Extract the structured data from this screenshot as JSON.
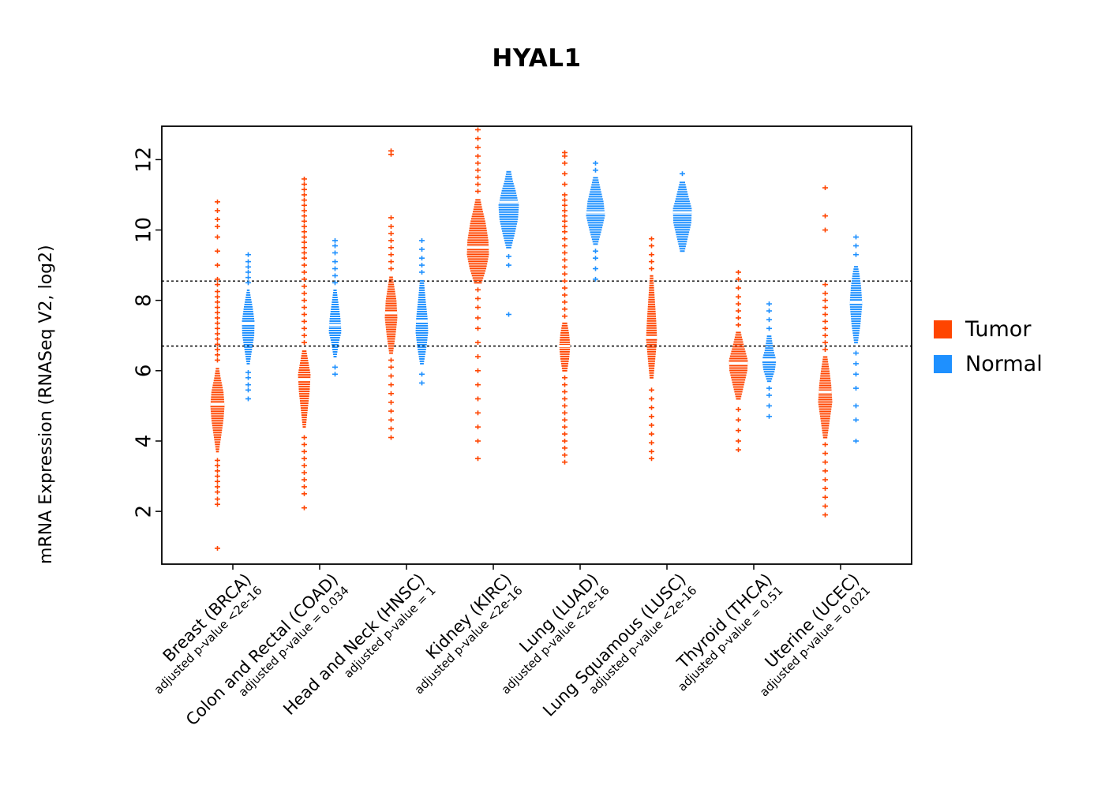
{
  "title": "HYAL1",
  "y_axis": {
    "label": "mRNA Expression (RNASeq V2, log2)",
    "ticks": [
      2,
      4,
      6,
      8,
      10,
      12
    ],
    "range": [
      0.5,
      12.95
    ]
  },
  "legend": [
    {
      "label": "Tumor",
      "color": "#FF4500"
    },
    {
      "label": "Normal",
      "color": "#1E90FF"
    }
  ],
  "chart_data": {
    "type": "violin-strip",
    "title": "HYAL1",
    "ylabel": "mRNA Expression (RNASeq V2, log2)",
    "ylim": [
      0.5,
      12.95
    ],
    "yticks": [
      2,
      4,
      6,
      8,
      10,
      12
    ],
    "grid": false,
    "legend_position": "right",
    "reference_lines": [
      8.55,
      6.7
    ],
    "series_colors": {
      "Tumor": "#FF4500",
      "Normal": "#1E90FF"
    },
    "groups": [
      {
        "label": "Breast (BRCA)",
        "pvalue": "adjusted p-value <2e-16",
        "tumor": {
          "median": 5.05,
          "half_width": 9,
          "body": [
            [
              3.7,
              0.2
            ],
            [
              4.1,
              0.5
            ],
            [
              4.6,
              0.85
            ],
            [
              5.0,
              1
            ],
            [
              5.4,
              0.85
            ],
            [
              5.8,
              0.45
            ],
            [
              6.1,
              0.2
            ]
          ],
          "outliers": [
            0.95,
            2.2,
            2.35,
            2.55,
            2.7,
            2.85,
            3.0,
            3.15,
            3.3,
            3.45,
            6.3,
            6.45,
            6.6,
            6.75,
            6.9,
            7.05,
            7.2,
            7.35,
            7.5,
            7.65,
            7.8,
            7.95,
            8.1,
            8.25,
            8.45,
            8.6,
            9.0,
            9.4,
            9.8,
            10.1,
            10.3,
            10.55,
            10.8
          ]
        },
        "normal": {
          "median": 7.35,
          "half_width": 8,
          "body": [
            [
              6.2,
              0.25
            ],
            [
              6.6,
              0.6
            ],
            [
              7.0,
              0.95
            ],
            [
              7.4,
              1
            ],
            [
              7.8,
              0.7
            ],
            [
              8.1,
              0.4
            ],
            [
              8.3,
              0.2
            ]
          ],
          "outliers": [
            5.2,
            5.45,
            5.6,
            5.8,
            5.95,
            8.5,
            8.65,
            8.8,
            8.95,
            9.1,
            9.3
          ]
        }
      },
      {
        "label": "Colon and Rectal (COAD)",
        "pvalue": "adjusted p-value = 0.034",
        "tumor": {
          "median": 5.75,
          "half_width": 8,
          "body": [
            [
              4.4,
              0.25
            ],
            [
              4.9,
              0.55
            ],
            [
              5.4,
              0.85
            ],
            [
              5.9,
              1
            ],
            [
              6.2,
              0.7
            ],
            [
              6.6,
              0.3
            ]
          ],
          "outliers": [
            2.1,
            2.5,
            2.7,
            2.9,
            3.1,
            3.3,
            3.5,
            3.7,
            3.9,
            4.1,
            6.8,
            7.0,
            7.2,
            7.4,
            7.6,
            7.8,
            8.0,
            8.2,
            8.4,
            8.6,
            8.8,
            9.0,
            9.2,
            9.35,
            9.5,
            9.65,
            9.8,
            9.95,
            10.1,
            10.25,
            10.4,
            10.55,
            10.7,
            10.85,
            11.0,
            11.15,
            11.3,
            11.45
          ]
        },
        "normal": {
          "median": 7.3,
          "half_width": 8,
          "body": [
            [
              6.4,
              0.25
            ],
            [
              6.8,
              0.6
            ],
            [
              7.1,
              1
            ],
            [
              7.5,
              0.85
            ],
            [
              7.9,
              0.55
            ],
            [
              8.3,
              0.25
            ]
          ],
          "outliers": [
            5.9,
            6.1,
            8.5,
            8.7,
            8.9,
            9.1,
            9.35,
            9.55,
            9.7
          ]
        }
      },
      {
        "label": "Head and Neck (HNSC)",
        "pvalue": "adjusted p-value = 1",
        "tumor": {
          "median": 7.65,
          "half_width": 8,
          "body": [
            [
              6.5,
              0.3
            ],
            [
              7.0,
              0.7
            ],
            [
              7.5,
              1
            ],
            [
              8.0,
              0.85
            ],
            [
              8.4,
              0.5
            ],
            [
              8.7,
              0.25
            ]
          ],
          "outliers": [
            4.1,
            4.35,
            4.6,
            4.85,
            5.1,
            5.35,
            5.6,
            5.85,
            6.1,
            6.3,
            8.9,
            9.1,
            9.3,
            9.5,
            9.7,
            9.9,
            10.1,
            10.35,
            12.15,
            12.25
          ]
        },
        "normal": {
          "median": 7.4,
          "half_width": 8,
          "body": [
            [
              6.2,
              0.3
            ],
            [
              6.7,
              0.75
            ],
            [
              7.1,
              1
            ],
            [
              7.5,
              0.9
            ],
            [
              8.0,
              0.6
            ],
            [
              8.6,
              0.3
            ]
          ],
          "outliers": [
            5.65,
            5.9,
            8.8,
            9.0,
            9.2,
            9.45,
            9.7
          ]
        }
      },
      {
        "label": "Kidney (KIRC)",
        "pvalue": "adjusted p-value <2e-16",
        "tumor": {
          "median": 9.5,
          "half_width": 14,
          "body": [
            [
              8.5,
              0.35
            ],
            [
              8.9,
              0.75
            ],
            [
              9.3,
              1
            ],
            [
              9.7,
              0.95
            ],
            [
              10.2,
              0.7
            ],
            [
              10.6,
              0.4
            ],
            [
              10.9,
              0.2
            ]
          ],
          "outliers": [
            3.5,
            4.0,
            4.4,
            4.8,
            5.2,
            5.6,
            6.0,
            6.4,
            6.8,
            7.2,
            7.5,
            7.8,
            8.05,
            8.3,
            11.1,
            11.3,
            11.5,
            11.7,
            11.9,
            12.1,
            12.35,
            12.6,
            12.85
          ]
        },
        "normal": {
          "median": 10.8,
          "half_width": 13,
          "body": [
            [
              9.5,
              0.25
            ],
            [
              9.9,
              0.6
            ],
            [
              10.3,
              0.9
            ],
            [
              10.7,
              1
            ],
            [
              11.1,
              0.7
            ],
            [
              11.4,
              0.4
            ],
            [
              11.7,
              0.2
            ]
          ],
          "outliers": [
            7.6,
            9.0,
            9.25
          ]
        }
      },
      {
        "label": "Lung (LUAD)",
        "pvalue": "adjusted p-value <2e-16",
        "tumor": {
          "median": 6.7,
          "half_width": 7,
          "body": [
            [
              6.0,
              0.45
            ],
            [
              6.35,
              0.8
            ],
            [
              6.7,
              1
            ],
            [
              7.05,
              0.8
            ],
            [
              7.35,
              0.45
            ]
          ],
          "outliers": [
            3.4,
            3.6,
            3.8,
            4.0,
            4.2,
            4.4,
            4.6,
            4.8,
            5.0,
            5.2,
            5.4,
            5.6,
            5.8,
            7.55,
            7.75,
            7.95,
            8.15,
            8.35,
            8.55,
            8.75,
            8.95,
            9.15,
            9.35,
            9.55,
            9.75,
            9.95,
            10.1,
            10.25,
            10.4,
            10.55,
            10.7,
            10.85,
            11.0,
            11.3,
            11.6,
            11.9,
            12.1,
            12.2
          ]
        },
        "normal": {
          "median": 10.5,
          "half_width": 12,
          "body": [
            [
              9.6,
              0.25
            ],
            [
              10.0,
              0.65
            ],
            [
              10.4,
              1
            ],
            [
              10.8,
              0.85
            ],
            [
              11.2,
              0.5
            ],
            [
              11.5,
              0.25
            ]
          ],
          "outliers": [
            8.6,
            8.9,
            9.2,
            9.4,
            11.7,
            11.9
          ]
        }
      },
      {
        "label": "Lung Squamous (LUSC)",
        "pvalue": "adjusted p-value <2e-16",
        "tumor": {
          "median": 6.95,
          "half_width": 7,
          "body": [
            [
              5.8,
              0.35
            ],
            [
              6.3,
              0.65
            ],
            [
              6.9,
              1
            ],
            [
              7.4,
              0.85
            ],
            [
              8.0,
              0.6
            ],
            [
              8.7,
              0.3
            ]
          ],
          "outliers": [
            3.5,
            3.7,
            3.95,
            4.2,
            4.45,
            4.7,
            4.95,
            5.2,
            5.45,
            8.9,
            9.1,
            9.3,
            9.55,
            9.75
          ]
        },
        "normal": {
          "median": 10.5,
          "half_width": 12,
          "body": [
            [
              9.4,
              0.25
            ],
            [
              9.8,
              0.6
            ],
            [
              10.2,
              0.95
            ],
            [
              10.6,
              1
            ],
            [
              11.0,
              0.6
            ],
            [
              11.4,
              0.25
            ]
          ],
          "outliers": [
            11.6
          ]
        }
      },
      {
        "label": "Thyroid (THCA)",
        "pvalue": "adjusted p-value = 0.51",
        "tumor": {
          "median": 6.2,
          "half_width": 12,
          "body": [
            [
              5.2,
              0.25
            ],
            [
              5.6,
              0.6
            ],
            [
              6.0,
              0.95
            ],
            [
              6.3,
              1
            ],
            [
              6.7,
              0.6
            ],
            [
              7.1,
              0.25
            ]
          ],
          "outliers": [
            3.75,
            4.0,
            4.3,
            4.6,
            4.9,
            7.3,
            7.5,
            7.7,
            7.9,
            8.1,
            8.35,
            8.6,
            8.8
          ]
        },
        "normal": {
          "median": 6.3,
          "half_width": 9,
          "body": [
            [
              5.7,
              0.3
            ],
            [
              6.0,
              0.8
            ],
            [
              6.3,
              1
            ],
            [
              6.6,
              0.6
            ],
            [
              7.0,
              0.3
            ]
          ],
          "outliers": [
            4.7,
            5.0,
            5.3,
            5.5,
            7.2,
            7.45,
            7.7,
            7.9
          ]
        }
      },
      {
        "label": "Uterine (UCEC)",
        "pvalue": "adjusted p-value = 0.021",
        "tumor": {
          "median": 5.4,
          "half_width": 9,
          "body": [
            [
              4.1,
              0.3
            ],
            [
              4.6,
              0.65
            ],
            [
              5.1,
              1
            ],
            [
              5.6,
              0.85
            ],
            [
              6.0,
              0.6
            ],
            [
              6.4,
              0.3
            ]
          ],
          "outliers": [
            1.9,
            2.15,
            2.4,
            2.65,
            2.9,
            3.15,
            3.4,
            3.65,
            3.9,
            6.6,
            6.8,
            7.0,
            7.2,
            7.4,
            7.6,
            7.8,
            8.0,
            8.2,
            8.45,
            10.0,
            10.4,
            11.2
          ]
        },
        "normal": {
          "median": 7.95,
          "half_width": 8,
          "body": [
            [
              6.8,
              0.3
            ],
            [
              7.3,
              0.7
            ],
            [
              7.9,
              1
            ],
            [
              8.4,
              0.8
            ],
            [
              8.8,
              0.5
            ],
            [
              9.0,
              0.25
            ]
          ],
          "outliers": [
            4.0,
            4.6,
            5.0,
            5.5,
            5.9,
            6.2,
            6.5,
            9.3,
            9.55,
            9.8
          ]
        }
      }
    ]
  }
}
